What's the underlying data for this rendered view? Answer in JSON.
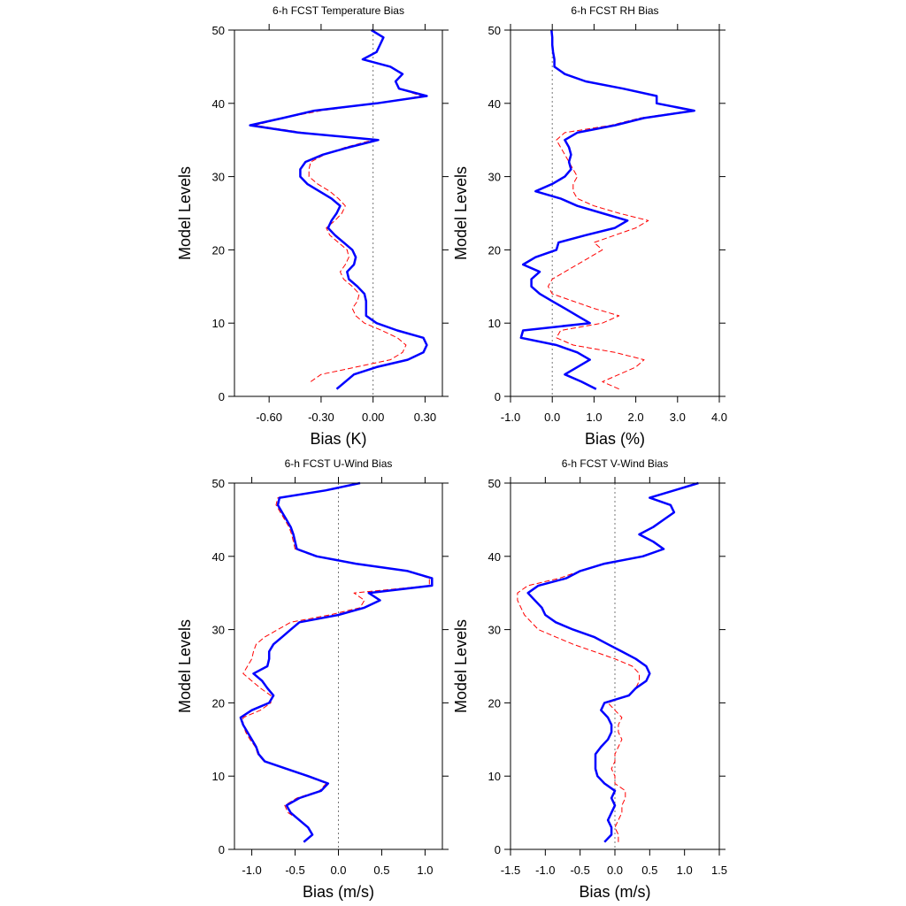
{
  "chart_data": [
    {
      "type": "line",
      "title": "6-h FCST Temperature Bias",
      "x_label": "Bias (K)",
      "y_label": "Model Levels",
      "y": [
        1,
        2,
        3,
        4,
        5,
        6,
        7,
        8,
        9,
        10,
        11,
        12,
        13,
        14,
        15,
        16,
        17,
        18,
        19,
        20,
        21,
        22,
        23,
        24,
        25,
        26,
        27,
        28,
        29,
        30,
        31,
        32,
        33,
        34,
        35,
        36,
        37,
        38,
        39,
        40,
        41,
        42,
        43,
        44,
        45,
        46,
        47,
        48,
        49,
        50
      ],
      "xlim": [
        -0.8,
        0.4
      ],
      "xticks": [
        {
          "value": -0.6,
          "label": "-0.60"
        },
        {
          "value": -0.3,
          "label": "-0.30"
        },
        {
          "value": 0,
          "label": "0.00"
        },
        {
          "value": 0.3,
          "label": "0.30"
        }
      ],
      "ylim": [
        0,
        50
      ],
      "yticks": [
        0,
        10,
        20,
        30,
        40,
        50
      ],
      "ref_x": 0,
      "series": [
        {
          "color": "#0000ff",
          "dashed": false,
          "values": [
            -0.21,
            -0.16,
            -0.11,
            0.02,
            0.2,
            0.29,
            0.31,
            0.29,
            0.14,
            0.02,
            -0.04,
            -0.04,
            -0.04,
            -0.05,
            -0.09,
            -0.14,
            -0.15,
            -0.11,
            -0.1,
            -0.12,
            -0.17,
            -0.22,
            -0.26,
            -0.24,
            -0.21,
            -0.19,
            -0.24,
            -0.31,
            -0.38,
            -0.42,
            -0.42,
            -0.39,
            -0.29,
            -0.14,
            0.03,
            -0.43,
            -0.71,
            -0.52,
            -0.34,
            0.02,
            0.31,
            0.15,
            0.13,
            0.17,
            0.1,
            -0.06,
            0.02,
            0.04,
            0.06,
            -0.01
          ]
        },
        {
          "color": "#ff0000",
          "dashed": true,
          "values": [
            null,
            -0.36,
            -0.3,
            -0.1,
            0.1,
            0.17,
            0.19,
            0.14,
            0.05,
            -0.05,
            -0.1,
            -0.12,
            -0.09,
            -0.08,
            -0.12,
            -0.17,
            -0.19,
            -0.16,
            -0.14,
            -0.15,
            -0.2,
            -0.25,
            -0.27,
            -0.22,
            -0.18,
            -0.16,
            -0.2,
            -0.25,
            -0.32,
            -0.37,
            -0.37,
            -0.36,
            -0.28,
            -0.16,
            0,
            -0.4,
            -0.68,
            -0.52,
            -0.3,
            0.02,
            0.28,
            0.15,
            0.13,
            0.17,
            0.1,
            -0.06,
            0.02,
            0.04,
            0.06,
            -0.01
          ]
        }
      ]
    },
    {
      "type": "line",
      "title": "6-h FCST RH Bias",
      "x_label": "Bias (%)",
      "y_label": "Model Levels",
      "y": [
        1,
        2,
        3,
        4,
        5,
        6,
        7,
        8,
        9,
        10,
        11,
        12,
        13,
        14,
        15,
        16,
        17,
        18,
        19,
        20,
        21,
        22,
        23,
        24,
        25,
        26,
        27,
        28,
        29,
        30,
        31,
        32,
        33,
        34,
        35,
        36,
        37,
        38,
        39,
        40,
        41,
        42,
        43,
        44,
        45,
        46,
        47,
        48,
        49,
        50
      ],
      "xlim": [
        -1,
        4
      ],
      "xticks": [
        {
          "value": -1,
          "label": "-1.0"
        },
        {
          "value": 0,
          "label": "0.0"
        },
        {
          "value": 1,
          "label": "1.0"
        },
        {
          "value": 2,
          "label": "2.0"
        },
        {
          "value": 3,
          "label": "3.0"
        },
        {
          "value": 4,
          "label": "4.0"
        }
      ],
      "ylim": [
        0,
        50
      ],
      "yticks": [
        0,
        10,
        20,
        30,
        40,
        50
      ],
      "ref_x": 0,
      "series": [
        {
          "color": "#0000ff",
          "dashed": false,
          "values": [
            1.05,
            0.7,
            0.3,
            0.6,
            0.9,
            0.6,
            0.1,
            -0.75,
            -0.7,
            0.9,
            0.6,
            0.3,
            0,
            -0.3,
            -0.5,
            -0.5,
            -0.3,
            -0.7,
            -0.4,
            0.1,
            0.15,
            0.8,
            1.5,
            1.8,
            1.2,
            0.6,
            0.2,
            -0.4,
            0,
            0.3,
            0.45,
            0.4,
            0.45,
            0.4,
            0.3,
            0.6,
            1.5,
            2.2,
            3.4,
            2.5,
            2.5,
            1.7,
            0.8,
            0.3,
            0.05,
            0.05,
            0.02,
            0,
            0,
            -0.02
          ]
        },
        {
          "color": "#ff0000",
          "dashed": true,
          "values": [
            1.6,
            1.2,
            1.6,
            2,
            2.2,
            1.5,
            0.5,
            0.1,
            0.2,
            1.2,
            1.6,
            1,
            0.5,
            0,
            -0.1,
            0,
            0.3,
            0.6,
            0.9,
            1.2,
            1,
            1.5,
            2,
            2.3,
            1.6,
            1,
            0.6,
            0.5,
            0.5,
            0.6,
            0.5,
            0.4,
            0.3,
            0.2,
            0.1,
            0.3,
            1.4,
            2.1,
            3.3,
            2.5,
            2.5,
            1.7,
            0.8,
            0.3,
            0.05,
            0.05,
            0.02,
            0,
            0,
            -0.02
          ]
        }
      ]
    },
    {
      "type": "line",
      "title": "6-h FCST U-Wind Bias",
      "x_label": "Bias (m/s)",
      "y_label": "Model Levels",
      "y": [
        1,
        2,
        3,
        4,
        5,
        6,
        7,
        8,
        9,
        10,
        11,
        12,
        13,
        14,
        15,
        16,
        17,
        18,
        19,
        20,
        21,
        22,
        23,
        24,
        25,
        26,
        27,
        28,
        29,
        30,
        31,
        32,
        33,
        34,
        35,
        36,
        37,
        38,
        39,
        40,
        41,
        42,
        43,
        44,
        45,
        46,
        47,
        48,
        49,
        50
      ],
      "xlim": [
        -1.2,
        1.2
      ],
      "xticks": [
        {
          "value": -1,
          "label": "-1.0"
        },
        {
          "value": -0.5,
          "label": "-0.5"
        },
        {
          "value": 0,
          "label": "0.0"
        },
        {
          "value": 0.5,
          "label": "0.5"
        },
        {
          "value": 1,
          "label": "1.0"
        }
      ],
      "ylim": [
        0,
        50
      ],
      "yticks": [
        0,
        10,
        20,
        30,
        40,
        50
      ],
      "ref_x": 0,
      "series": [
        {
          "color": "#0000ff",
          "dashed": false,
          "values": [
            -0.4,
            -0.3,
            -0.35,
            -0.45,
            -0.55,
            -0.6,
            -0.45,
            -0.2,
            -0.12,
            -0.35,
            -0.6,
            -0.85,
            -0.92,
            -0.95,
            -1,
            -1.05,
            -1.1,
            -1.13,
            -1,
            -0.8,
            -0.75,
            -0.82,
            -0.88,
            -0.98,
            -0.82,
            -0.8,
            -0.8,
            -0.75,
            -0.65,
            -0.55,
            -0.45,
            0,
            0.3,
            0.48,
            0.35,
            1.08,
            1.08,
            0.8,
            0.2,
            -0.25,
            -0.48,
            -0.5,
            -0.52,
            -0.55,
            -0.6,
            -0.65,
            -0.7,
            -0.68,
            -0.15,
            0.25
          ]
        },
        {
          "color": "#ff0000",
          "dashed": true,
          "values": [
            -0.4,
            -0.3,
            -0.35,
            -0.45,
            -0.58,
            -0.62,
            -0.48,
            -0.22,
            -0.14,
            -0.37,
            -0.62,
            -0.86,
            -0.93,
            -0.96,
            -1.02,
            -1.07,
            -1.1,
            -1.1,
            -0.9,
            -0.78,
            -0.78,
            -0.9,
            -1,
            -1.1,
            -1.05,
            -1,
            -0.98,
            -0.95,
            -0.85,
            -0.7,
            -0.55,
            -0.1,
            0.25,
            0.3,
            0.18,
            1.05,
            1.05,
            0.78,
            0.18,
            -0.27,
            -0.5,
            -0.52,
            -0.54,
            -0.57,
            -0.62,
            -0.67,
            -0.72,
            -0.7,
            -0.17,
            0.23
          ]
        }
      ]
    },
    {
      "type": "line",
      "title": "6-h FCST V-Wind Bias",
      "x_label": "Bias (m/s)",
      "y_label": "Model Levels",
      "y": [
        1,
        2,
        3,
        4,
        5,
        6,
        7,
        8,
        9,
        10,
        11,
        12,
        13,
        14,
        15,
        16,
        17,
        18,
        19,
        20,
        21,
        22,
        23,
        24,
        25,
        26,
        27,
        28,
        29,
        30,
        31,
        32,
        33,
        34,
        35,
        36,
        37,
        38,
        39,
        40,
        41,
        42,
        43,
        44,
        45,
        46,
        47,
        48,
        49,
        50
      ],
      "xlim": [
        -1.5,
        1.5
      ],
      "xticks": [
        {
          "value": -1.5,
          "label": "-1.5"
        },
        {
          "value": -1,
          "label": "-1.0"
        },
        {
          "value": -0.5,
          "label": "-0.5"
        },
        {
          "value": 0,
          "label": "0.0"
        },
        {
          "value": 0.5,
          "label": "0.5"
        },
        {
          "value": 1,
          "label": "1.0"
        },
        {
          "value": 1.5,
          "label": "1.5"
        }
      ],
      "ylim": [
        0,
        50
      ],
      "yticks": [
        0,
        10,
        20,
        30,
        40,
        50
      ],
      "ref_x": 0,
      "series": [
        {
          "color": "#0000ff",
          "dashed": false,
          "values": [
            -0.15,
            -0.05,
            -0.05,
            -0.1,
            -0.05,
            0,
            -0.05,
            0,
            -0.15,
            -0.25,
            -0.28,
            -0.28,
            -0.28,
            -0.2,
            -0.1,
            -0.05,
            -0.05,
            -0.1,
            -0.2,
            -0.15,
            0.2,
            0.3,
            0.45,
            0.5,
            0.45,
            0.3,
            0.1,
            -0.1,
            -0.3,
            -0.6,
            -0.85,
            -1,
            -1.05,
            -1.15,
            -1.25,
            -1.1,
            -0.7,
            -0.5,
            -0.15,
            0.4,
            0.7,
            0.55,
            0.35,
            0.55,
            0.7,
            0.85,
            0.8,
            0.5,
            0.85,
            1.2
          ]
        },
        {
          "color": "#ff0000",
          "dashed": true,
          "values": [
            0.05,
            0.05,
            0,
            0.05,
            0.1,
            0.1,
            0.15,
            0.15,
            0,
            0,
            -0.05,
            0,
            0,
            0.05,
            0.1,
            0.05,
            0.05,
            0.1,
            0,
            -0.1,
            0.2,
            0.3,
            0.35,
            0.35,
            0.25,
            0,
            -0.3,
            -0.6,
            -0.85,
            -1.1,
            -1.2,
            -1.3,
            -1.35,
            -1.4,
            -1.4,
            -1.25,
            -0.8,
            -0.5,
            -0.15,
            0.4,
            0.7,
            0.55,
            0.35,
            0.55,
            0.7,
            0.85,
            0.8,
            0.5,
            0.85,
            1.2
          ]
        }
      ]
    }
  ]
}
